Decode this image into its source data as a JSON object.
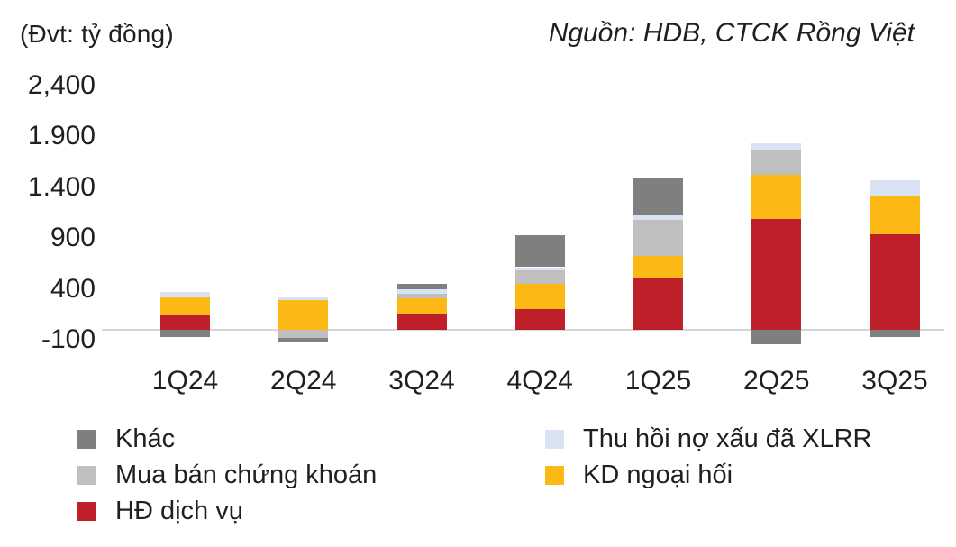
{
  "header": {
    "unit_label": "(Đvt: tỷ đồng)",
    "source_label": "Nguồn: HDB, CTCK Rồng Việt"
  },
  "chart_data": {
    "type": "bar",
    "stacked": true,
    "unit": "tỷ đồng",
    "categories": [
      "1Q24",
      "2Q24",
      "3Q24",
      "4Q24",
      "1Q25",
      "2Q25",
      "3Q25"
    ],
    "series": [
      {
        "key": "hd-dich-vu",
        "name": "HĐ dịch vụ",
        "color": "#be202a",
        "values": [
          140,
          0,
          155,
          205,
          505,
          1085,
          940
        ]
      },
      {
        "key": "kd-ngoai-hoi",
        "name": "KD ngoại hối",
        "color": "#fcb815",
        "values": [
          175,
          290,
          155,
          245,
          220,
          440,
          380
        ]
      },
      {
        "key": "mua-ban-chung-khoan",
        "name": "Mua bán chứng khoán",
        "color": "#bfbfbf",
        "values": [
          0,
          -80,
          40,
          130,
          355,
          240,
          0
        ]
      },
      {
        "key": "thu-hoi-no-xau",
        "name": "Thu hồi nợ xấu đã XLRR",
        "color": "#dae3f3",
        "values": [
          55,
          25,
          45,
          35,
          40,
          70,
          145
        ]
      },
      {
        "key": "khac",
        "name": "Khác",
        "color": "#7f7f7f",
        "values": [
          -70,
          -45,
          60,
          310,
          370,
          -140,
          -70
        ]
      }
    ],
    "y_axis": {
      "tick_labels": [
        "2,400",
        "1.900",
        "1.400",
        "900",
        "400",
        "-100"
      ],
      "tick_values": [
        2400,
        1900,
        1400,
        900,
        400,
        -100
      ],
      "min": -200,
      "max": 2500,
      "gridlines": false
    },
    "legend_position": "bottom",
    "title": "",
    "xlabel": "",
    "ylabel": ""
  },
  "legend": {
    "items": [
      {
        "key": "khac",
        "label": "Khác",
        "color": "#7f7f7f"
      },
      {
        "key": "thu-hoi-no-xau",
        "label": "Thu hồi nợ xấu đã XLRR",
        "color": "#dae3f3"
      },
      {
        "key": "mua-ban-chung-khoan",
        "label": "Mua bán chứng khoán",
        "color": "#bfbfbf"
      },
      {
        "key": "kd-ngoai-hoi",
        "label": "KD ngoại hối",
        "color": "#fcb815"
      },
      {
        "key": "hd-dich-vu",
        "label": "HĐ dịch vụ",
        "color": "#be202a"
      }
    ]
  },
  "colors": {
    "axis_line": "#d6d6d6",
    "text": "#1f1f1f"
  }
}
